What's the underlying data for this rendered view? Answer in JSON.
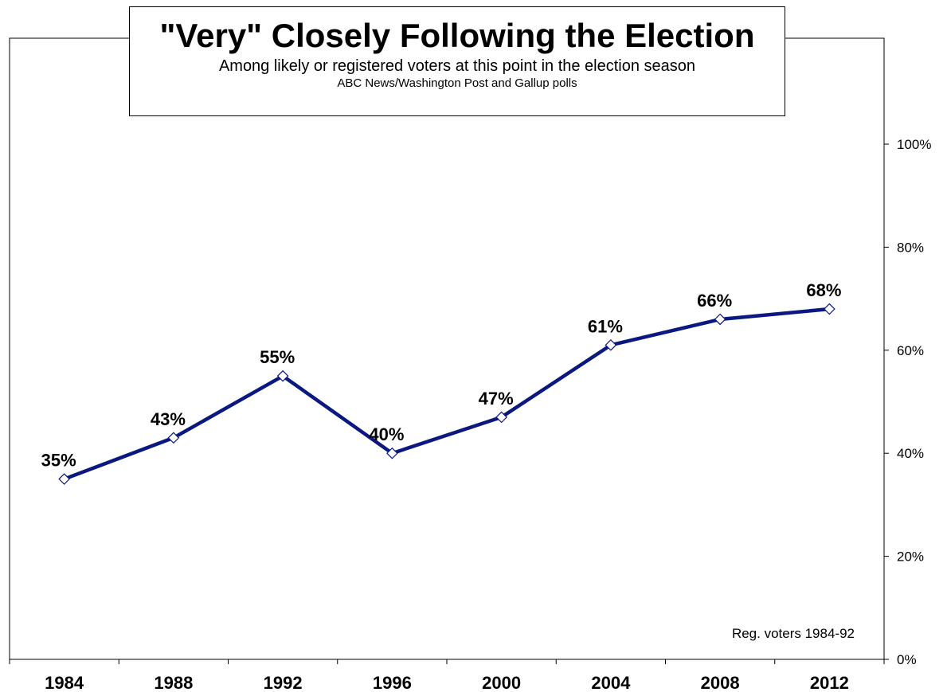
{
  "chart_data": {
    "type": "line",
    "title": "\"Very\" Closely Following the Election",
    "subtitle": "Among likely or registered voters at this point in the election season",
    "source": "ABC News/Washington  Post and Gallup  polls",
    "categories": [
      "1984",
      "1988",
      "1992",
      "1996",
      "2000",
      "2004",
      "2008",
      "2012"
    ],
    "values": [
      35,
      43,
      55,
      40,
      47,
      61,
      66,
      68
    ],
    "data_labels": [
      "35%",
      "43%",
      "55%",
      "40%",
      "47%",
      "61%",
      "66%",
      "68%"
    ],
    "yticks": [
      0,
      20,
      40,
      60,
      80,
      100
    ],
    "ytick_labels": [
      "0%",
      "20%",
      "40%",
      "60%",
      "80%",
      "100%"
    ],
    "ylim": [
      0,
      100
    ],
    "y_axis_position": "right",
    "annotation": "Reg. voters  1984-92",
    "grid": false,
    "legend": "none",
    "line_color": "#0B1880",
    "marker": "diamond",
    "marker_fill": "#ffffff"
  }
}
